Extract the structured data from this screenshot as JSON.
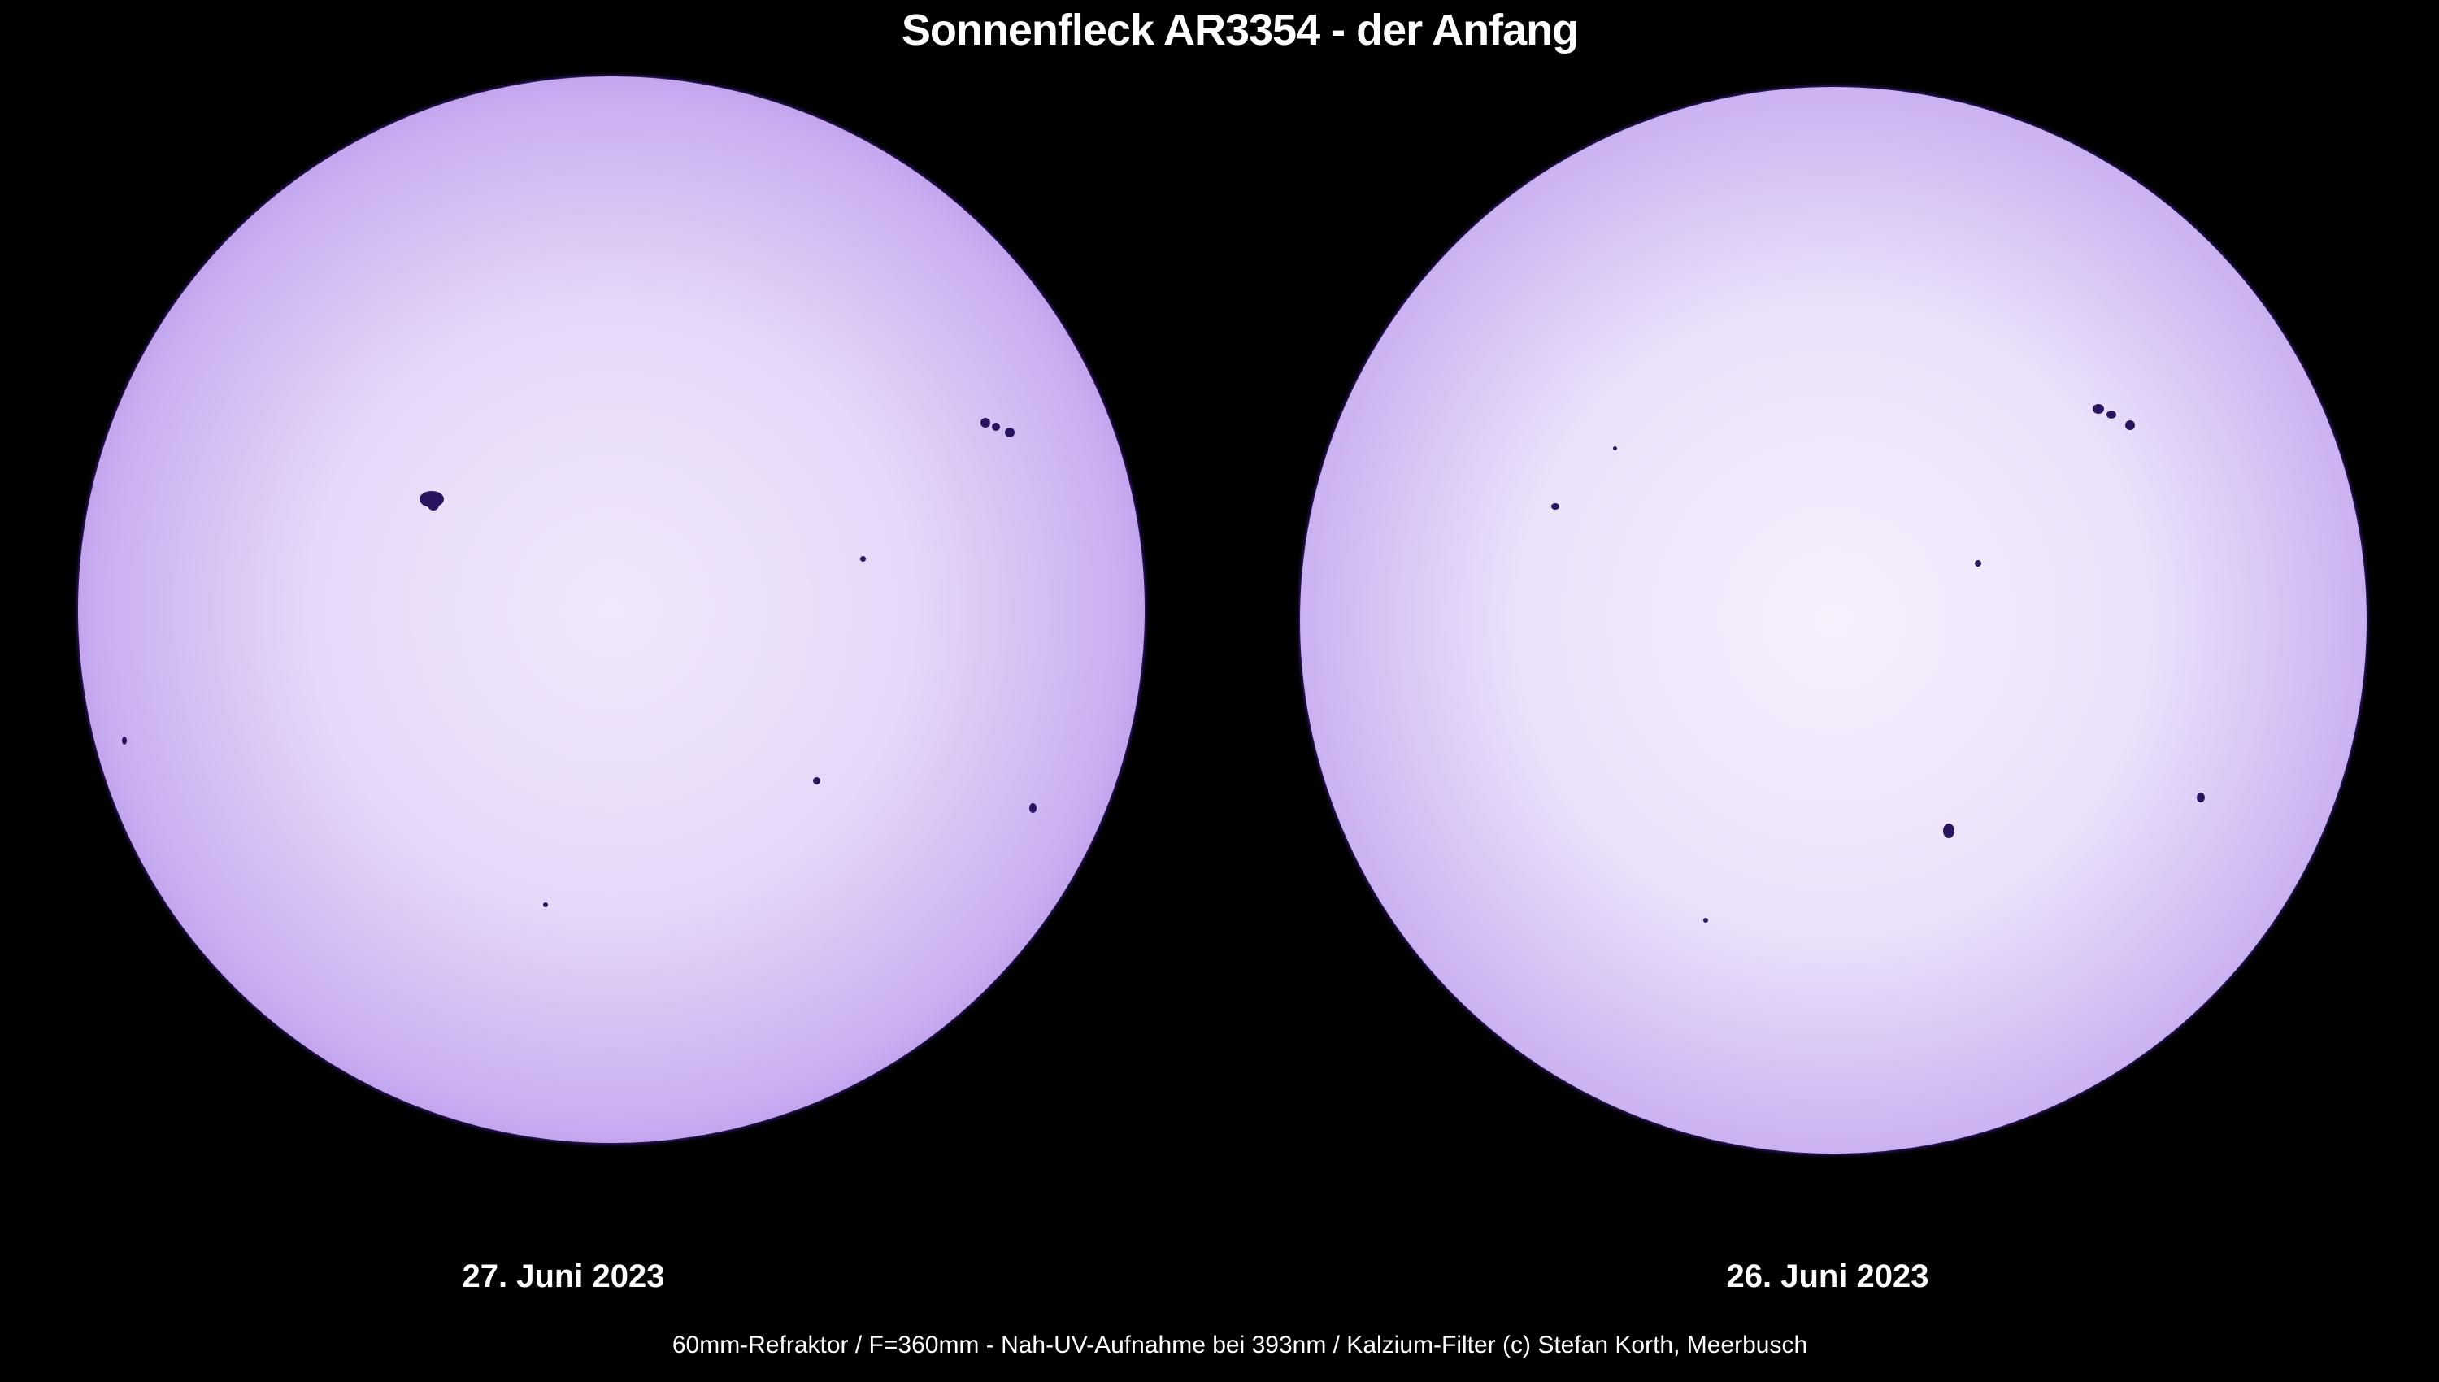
{
  "title": "Sonnenfleck AR3354 - der Anfang",
  "images": [
    {
      "date": "27. Juni 2023"
    },
    {
      "date": "26. Juni 2023"
    }
  ],
  "caption": "60mm-Refraktor / F=360mm - Nah-UV-Aufnahme bei 393nm / Kalzium-Filter (c) Stefan Korth, Meerbusch",
  "colors": {
    "background": "#000000",
    "disk_limb": "#5a2fc6",
    "disk_center": "#f1e8fb",
    "sunspot": "#2a1460"
  }
}
